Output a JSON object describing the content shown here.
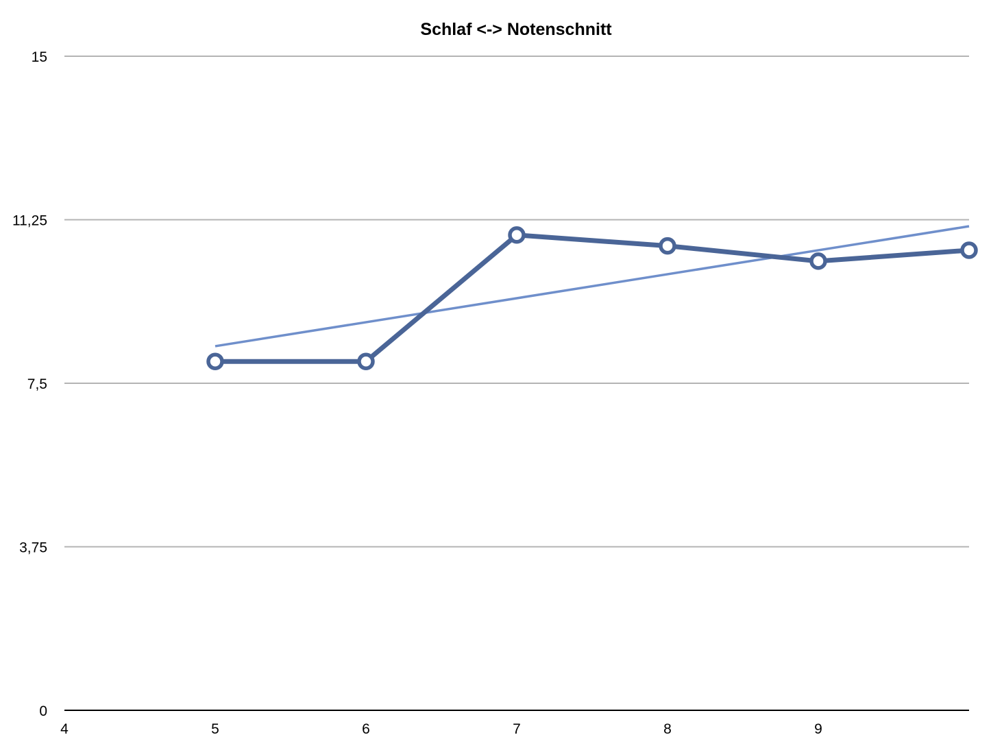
{
  "chart_data": {
    "type": "line",
    "title": "Schlaf <-> Notenschnitt",
    "xlabel": "",
    "ylabel": "",
    "xlim": [
      4,
      10
    ],
    "ylim": [
      0,
      15
    ],
    "x_ticks": [
      4,
      5,
      6,
      7,
      8,
      9
    ],
    "x_tick_labels": [
      "4",
      "5",
      "6",
      "7",
      "8",
      "9"
    ],
    "y_ticks": [
      0,
      3.75,
      7.5,
      11.25,
      15
    ],
    "y_tick_labels": [
      "0",
      "3,75",
      "7,5",
      "11,25",
      "15"
    ],
    "grid": true,
    "legend": "none",
    "series": [
      {
        "style": "line-with-markers",
        "color": "#4a6597",
        "x": [
          5,
          6,
          7,
          8,
          9,
          10
        ],
        "y": [
          8.0,
          8.0,
          10.9,
          10.65,
          10.3,
          10.55
        ]
      },
      {
        "style": "trendline",
        "color": "#6f8fcb",
        "x": [
          5,
          10
        ],
        "y": [
          8.35,
          11.1
        ]
      }
    ],
    "colors": {
      "grid": "#b4b4b4",
      "axis": "#000000",
      "data_line": "#4a6597",
      "trend_line": "#6f8fcb",
      "marker_fill": "#ffffff"
    }
  }
}
